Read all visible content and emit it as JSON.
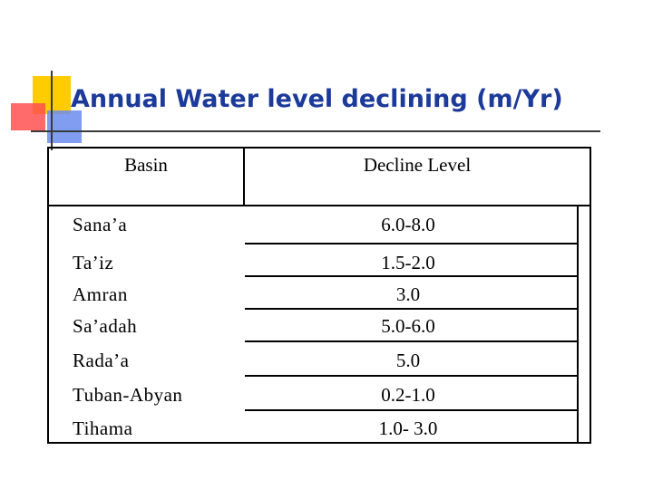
{
  "title": "Annual Water level declining (m/Yr)",
  "table": {
    "headers": [
      "Basin",
      "Decline Level"
    ],
    "rows": [
      {
        "basin": "Sana’a",
        "decline": "6.0-8.0"
      },
      {
        "basin": "Ta’iz",
        "decline": "1.5-2.0"
      },
      {
        "basin": "Amran",
        "decline": "3.0"
      },
      {
        "basin": "Sa’adah",
        "decline": "5.0-6.0"
      },
      {
        "basin": "Rada’a",
        "decline": "5.0"
      },
      {
        "basin": "Tuban-Abyan",
        "decline": "0.2-1.0"
      },
      {
        "basin": "Tihama",
        "decline": "1.0- 3.0"
      }
    ]
  },
  "colors": {
    "title": "#1c3a9a",
    "yellow": "#ffcc00",
    "red": "#ff5050",
    "blue": "#6a8cf0"
  }
}
